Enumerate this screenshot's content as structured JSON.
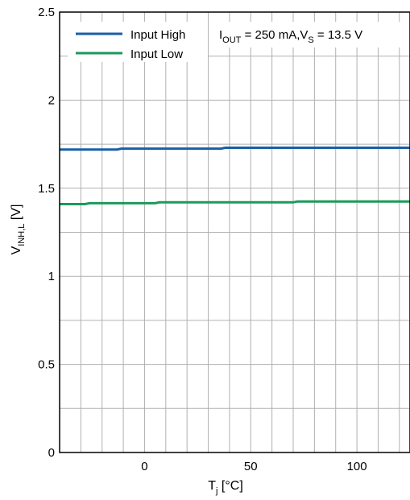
{
  "chart_data": {
    "type": "line",
    "title": "",
    "annotation": {
      "i_main": "I",
      "i_sub": "OUT",
      "i_mid": " = 250 mA,V",
      "v_sub": "S",
      "v_tail": " = 13.5 V"
    },
    "xlabel": {
      "main": "T",
      "sub": "j",
      "tail": " [°C]"
    },
    "ylabel": {
      "main": "V",
      "sub": "INH,L",
      "tail": " [V]"
    },
    "xlim": [
      -40,
      125
    ],
    "ylim": [
      0,
      2.5
    ],
    "x_ticks": [
      0,
      50,
      100
    ],
    "y_ticks": [
      0,
      0.5,
      1,
      1.5,
      2,
      2.5
    ],
    "x_tick_labels": [
      "0",
      "50",
      "100"
    ],
    "y_tick_labels": [
      "0",
      "0.5",
      "1",
      "1.5",
      "2",
      "2.5"
    ],
    "grid": true,
    "legend_position": "top-left",
    "series": [
      {
        "name": "Input High",
        "color": "#1a5fa6",
        "x": [
          -40,
          -13,
          -11,
          36,
          38,
          125
        ],
        "y": [
          1.72,
          1.72,
          1.725,
          1.725,
          1.73,
          1.73
        ]
      },
      {
        "name": "Input Low",
        "color": "#1b9a5a",
        "x": [
          -40,
          -28,
          -26,
          5,
          7,
          70,
          72,
          125
        ],
        "y": [
          1.41,
          1.41,
          1.415,
          1.415,
          1.42,
          1.42,
          1.425,
          1.425
        ]
      }
    ]
  }
}
